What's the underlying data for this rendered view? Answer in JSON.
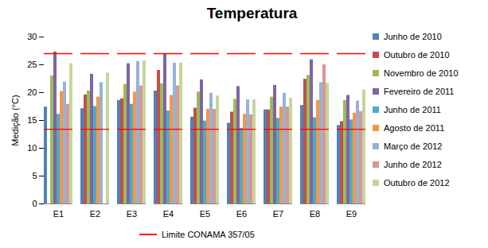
{
  "chart_data": {
    "type": "bar",
    "title": "Temperatura",
    "ylabel": "Medição (°C)",
    "categories": [
      "E1",
      "E2",
      "E3",
      "E4",
      "E5",
      "E6",
      "E7",
      "E8",
      "E9"
    ],
    "series": [
      {
        "name": "Junho de 2010",
        "color": "#4f81bd",
        "values": [
          17.4,
          17.1,
          18.6,
          20.3,
          15.6,
          14.5,
          16.9,
          17.7,
          14.1
        ]
      },
      {
        "name": "Outubro de 2010",
        "color": "#c0504d",
        "values": [
          null,
          19.6,
          18.9,
          24.0,
          17.2,
          16.5,
          16.9,
          22.4,
          14.8
        ]
      },
      {
        "name": "Novembro de 2010",
        "color": "#9bbb59",
        "values": [
          23.0,
          20.3,
          21.5,
          21.6,
          20.1,
          18.8,
          19.2,
          23.1,
          18.6
        ]
      },
      {
        "name": "Fevereiro de 2011",
        "color": "#8064a2",
        "values": [
          27.3,
          23.3,
          25.2,
          27.0,
          22.3,
          21.1,
          21.3,
          25.9,
          19.5
        ]
      },
      {
        "name": "Junho de 2011",
        "color": "#4bacc6",
        "values": [
          16.1,
          17.5,
          17.9,
          16.7,
          14.9,
          13.6,
          15.4,
          15.5,
          15.1
        ]
      },
      {
        "name": "Agosto de 2011",
        "color": "#f79646",
        "values": [
          20.2,
          19.2,
          20.1,
          19.5,
          17.0,
          16.1,
          17.4,
          18.6,
          16.3
        ]
      },
      {
        "name": "Março de 2012",
        "color": "#95b3d7",
        "values": [
          21.9,
          21.8,
          25.6,
          25.3,
          19.9,
          18.7,
          19.9,
          21.8,
          18.5
        ]
      },
      {
        "name": "Junho de 2012",
        "color": "#d99694",
        "values": [
          17.9,
          null,
          21.2,
          21.2,
          17.0,
          16.0,
          17.4,
          25.0,
          16.6
        ]
      },
      {
        "name": "Outubro de 2012",
        "color": "#c3d69b",
        "values": [
          25.2,
          23.5,
          25.7,
          25.3,
          19.4,
          18.7,
          19.0,
          21.7,
          20.5
        ]
      }
    ],
    "reference_lines": {
      "name": "Limite CONAMA 357/05",
      "color": "#ff0000",
      "values": [
        13.4,
        27
      ]
    },
    "ylim": [
      0,
      30
    ],
    "yticks": [
      0,
      5,
      10,
      15,
      20,
      25,
      30
    ],
    "grid": false,
    "legend": "right"
  }
}
